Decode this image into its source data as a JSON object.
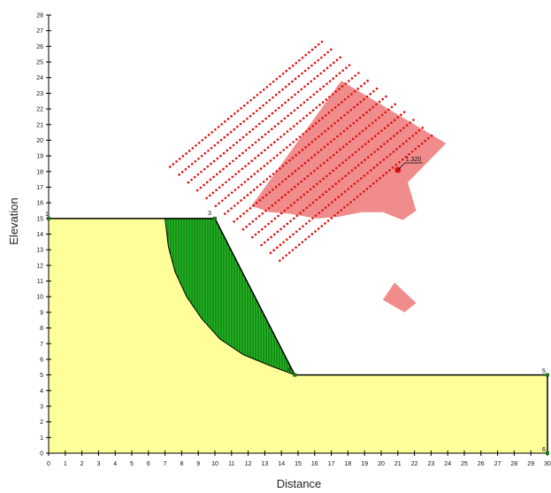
{
  "chart_data": {
    "type": "scatter",
    "title": "",
    "xlabel": "Distance",
    "ylabel": "Elevation",
    "xlim": [
      0,
      30
    ],
    "ylim": [
      0,
      28
    ],
    "x_ticks": [
      0,
      1,
      2,
      3,
      4,
      5,
      6,
      7,
      8,
      9,
      10,
      11,
      12,
      13,
      14,
      15,
      16,
      17,
      18,
      19,
      20,
      21,
      22,
      23,
      24,
      25,
      26,
      27,
      28,
      29,
      30
    ],
    "y_ticks": [
      0,
      1,
      2,
      3,
      4,
      5,
      6,
      7,
      8,
      9,
      10,
      11,
      12,
      13,
      14,
      15,
      16,
      17,
      18,
      19,
      20,
      21,
      22,
      23,
      24,
      25,
      26,
      27,
      28
    ],
    "grid": false,
    "colors": {
      "soil": "#ffff99",
      "slip_mass": "#22bb22",
      "critical_zone": "#f08080",
      "grid_points": "#e01010",
      "critical_center": "#e01010",
      "outline": "#000000"
    },
    "geometry": {
      "slope_points": [
        {
          "id": "1",
          "x": 0,
          "y": 15
        },
        {
          "id": "3",
          "x": 10,
          "y": 15
        },
        {
          "id": "4",
          "x": 14.8,
          "y": 5
        },
        {
          "id": "5",
          "x": 30,
          "y": 5
        },
        {
          "id": "6",
          "x": 30,
          "y": 0
        }
      ],
      "soil_polygon": [
        [
          0,
          0
        ],
        [
          0,
          15
        ],
        [
          10,
          15
        ],
        [
          14.8,
          5
        ],
        [
          30,
          5
        ],
        [
          30,
          0
        ]
      ],
      "slip_mass_polygon": [
        [
          7,
          15
        ],
        [
          10,
          15
        ],
        [
          14.8,
          5
        ],
        [
          13.3,
          5.6
        ],
        [
          11.7,
          6.3
        ],
        [
          10.3,
          7.3
        ],
        [
          9.2,
          8.6
        ],
        [
          8.3,
          10
        ],
        [
          7.6,
          11.6
        ],
        [
          7.2,
          13.2
        ]
      ]
    },
    "search_grid": {
      "rows": 13,
      "origin": [
        7.3,
        18.3
      ],
      "row_direction": [
        0.72,
        0.63
      ],
      "row_step": [
        0.55,
        -0.5
      ],
      "point_spacing": 0.27,
      "points_per_row": 48
    },
    "critical_zone_polygon": [
      [
        12.2,
        15.8
      ],
      [
        17.6,
        23.8
      ],
      [
        23.9,
        19.8
      ],
      [
        21.6,
        17.3
      ],
      [
        22.1,
        15.5
      ],
      [
        21.3,
        14.9
      ],
      [
        20.1,
        15.4
      ],
      [
        18.8,
        15.4
      ],
      [
        17.4,
        15.1
      ],
      [
        16.1,
        15
      ],
      [
        14.5,
        15.3
      ],
      [
        13.3,
        15.4
      ]
    ],
    "critical_zone_small": [
      [
        20.1,
        9.8
      ],
      [
        20.8,
        10.9
      ],
      [
        22.1,
        9.6
      ],
      [
        21.4,
        9.0
      ]
    ],
    "critical_center": {
      "x": 21,
      "y": 18.1,
      "label": "1.320"
    }
  }
}
